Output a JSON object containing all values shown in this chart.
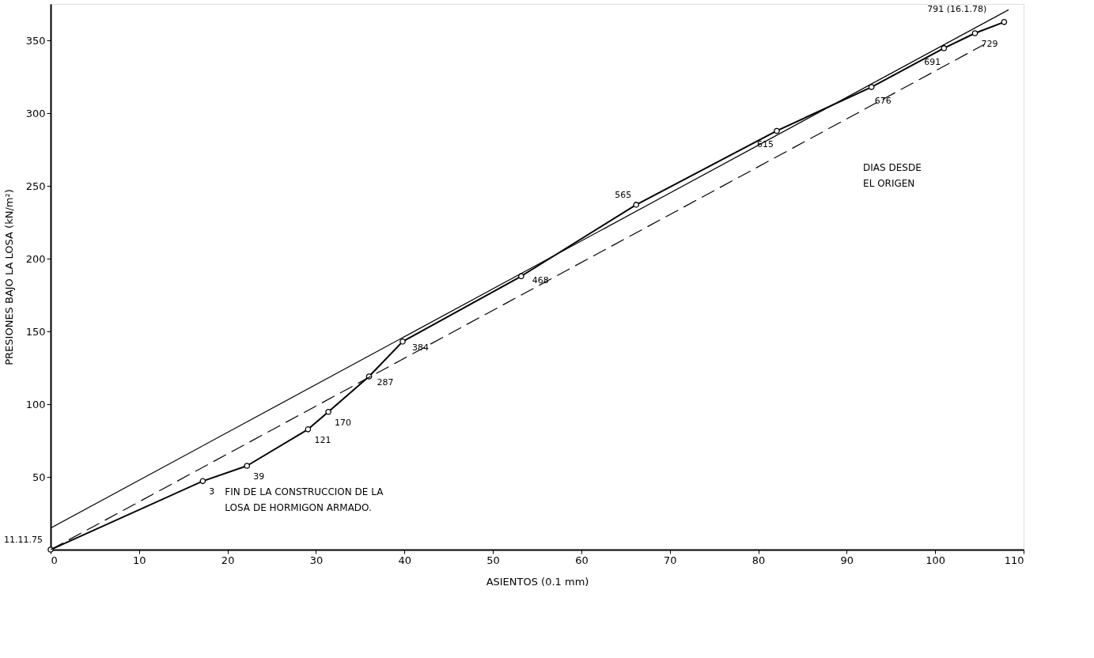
{
  "chart_data": {
    "type": "line",
    "xlabel": "ASIENTOS (0.1 mm)",
    "ylabel": "PRESIONES BAJO LA LOSA (kN/m²)",
    "xlim": [
      0,
      110
    ],
    "ylim": [
      0,
      375
    ],
    "xticks": [
      0,
      10,
      20,
      30,
      40,
      50,
      60,
      70,
      80,
      90,
      100,
      110
    ],
    "yticks": [
      50,
      100,
      150,
      200,
      250,
      300,
      350
    ],
    "grid": false,
    "series": [
      {
        "color": "#000000",
        "marker": "circle",
        "line_style": "solid",
        "x": [
          0,
          17.2,
          22.2,
          29.1,
          31.4,
          36.0,
          39.8,
          53.2,
          66.2,
          82.1,
          92.8,
          101.0,
          104.5,
          107.8
        ],
        "values": [
          0,
          47.1,
          57.6,
          82.7,
          94.7,
          119,
          143,
          187.9,
          237,
          287.8,
          317.9,
          344.6,
          354.9,
          362.6
        ]
      },
      {
        "color": "#000000",
        "marker": "none",
        "line_style": "solid",
        "x": [
          0,
          108.3
        ],
        "values": [
          14.8,
          371
        ]
      },
      {
        "color": "#000000",
        "marker": "none",
        "line_style": "dashed",
        "x": [
          0,
          105.5
        ],
        "values": [
          0,
          347
        ]
      }
    ],
    "annotations": [
      {
        "text": "11.11.75",
        "x": 0,
        "y": 0
      },
      {
        "text": "3",
        "x": 17.2,
        "y": 47.1
      },
      {
        "text": "39",
        "x": 22.2,
        "y": 57.6
      },
      {
        "text": "121",
        "x": 29.1,
        "y": 82.7
      },
      {
        "text": "170",
        "x": 31.4,
        "y": 94.7
      },
      {
        "text": "287",
        "x": 36.0,
        "y": 119
      },
      {
        "text": "384",
        "x": 39.8,
        "y": 143
      },
      {
        "text": "468",
        "x": 53.2,
        "y": 187.9
      },
      {
        "text": "565",
        "x": 66.2,
        "y": 237
      },
      {
        "text": "615",
        "x": 82.1,
        "y": 287.8
      },
      {
        "text": "676",
        "x": 92.8,
        "y": 317.9
      },
      {
        "text": "691",
        "x": 101.0,
        "y": 344.6
      },
      {
        "text": "729",
        "x": 104.5,
        "y": 354.9
      },
      {
        "text": "791 (16.1.78)",
        "x": 107.8,
        "y": 362.6
      },
      {
        "text": "FIN DE LA CONSTRUCCION DE LA\nLOSA DE HORMIGON ARMADO.",
        "x": 17.2,
        "y": 47.1
      },
      "DIAS DESDE\nEL ORIGEN"
    ]
  }
}
